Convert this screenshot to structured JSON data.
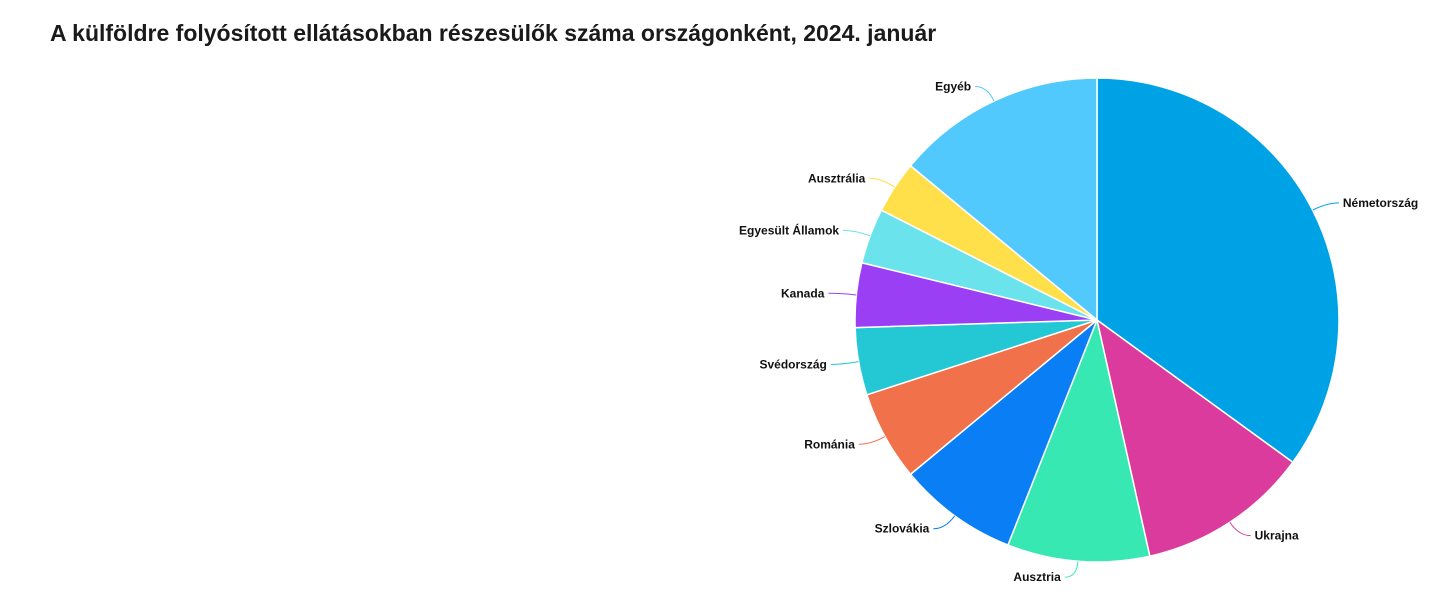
{
  "chart_data": {
    "type": "pie",
    "title": "A külföldre folyósított ellátásokban részesülők száma országonként, 2024. január",
    "slices": [
      {
        "label": "Németország",
        "value": 35.0,
        "color": "#00a2e6"
      },
      {
        "label": "Ukrajna",
        "value": 11.5,
        "color": "#dc3b9e"
      },
      {
        "label": "Ausztria",
        "value": 9.5,
        "color": "#37e8b3"
      },
      {
        "label": "Szlovákia",
        "value": 8.0,
        "color": "#0a7ef5"
      },
      {
        "label": "Románia",
        "value": 6.0,
        "color": "#f0714a"
      },
      {
        "label": "Svédország",
        "value": 4.5,
        "color": "#24c8d5"
      },
      {
        "label": "Kanada",
        "value": 4.3,
        "color": "#9b3ff5"
      },
      {
        "label": "Egyesült Államok",
        "value": 3.7,
        "color": "#6ae3ec"
      },
      {
        "label": "Ausztrália",
        "value": 3.5,
        "color": "#ffe04a"
      },
      {
        "label": "Egyéb",
        "value": 14.0,
        "color": "#52c9fd"
      }
    ],
    "legend": "none"
  }
}
